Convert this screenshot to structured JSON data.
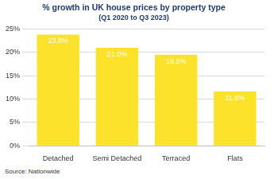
{
  "chart_data": {
    "type": "bar",
    "title": "% growth in UK house prices by property type",
    "subtitle": "(Q1 2020 to Q3 2023)",
    "categories": [
      "Detached",
      "Semi Detached",
      "Terraced",
      "Flats"
    ],
    "values": [
      23.8,
      21.0,
      19.5,
      11.6
    ],
    "value_labels": [
      "23.8%",
      "21.0%",
      "19.5%",
      "11.6%"
    ],
    "color": "#fde22b",
    "ylim": [
      0,
      25
    ],
    "yticks": [
      {
        "value": 0,
        "label": "0%"
      },
      {
        "value": 5,
        "label": "5%"
      },
      {
        "value": 10,
        "label": "10%"
      },
      {
        "value": 15,
        "label": "15%"
      },
      {
        "value": 20,
        "label": "20%"
      },
      {
        "value": 25,
        "label": "25%"
      }
    ],
    "grid": true,
    "data_labels": true,
    "source": "Source: Nationwide"
  }
}
